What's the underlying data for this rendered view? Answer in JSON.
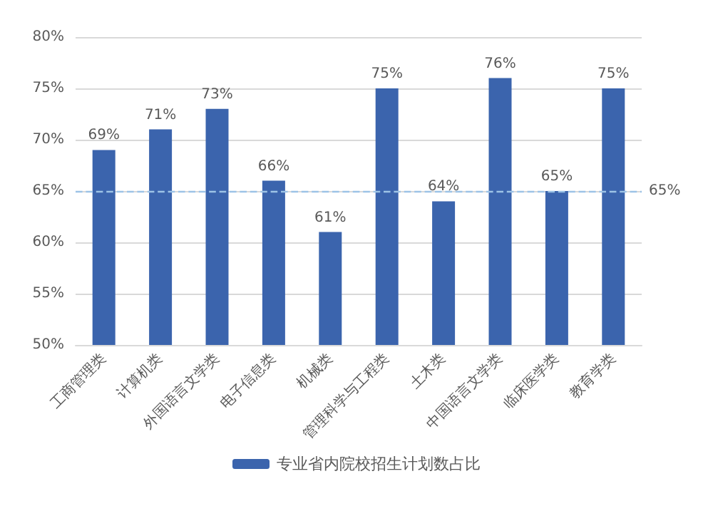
{
  "chart_data": {
    "type": "bar",
    "categories": [
      "工商管理类",
      "计算机类",
      "外国语言文学类",
      "电子信息类",
      "机械类",
      "管理科学与工程类",
      "土木类",
      "中国语言文学类",
      "临床医学类",
      "教育学类"
    ],
    "series": [
      {
        "name": "专业省内院校招生计划数占比",
        "color": "#3b64ad",
        "values": [
          69,
          71,
          73,
          66,
          61,
          75,
          64,
          76,
          65,
          75
        ]
      }
    ],
    "value_labels": [
      "69%",
      "71%",
      "73%",
      "66%",
      "61%",
      "75%",
      "64%",
      "76%",
      "65%",
      "75%"
    ],
    "ylim": [
      50,
      80
    ],
    "yticks": [
      {
        "value": 50,
        "label": "50%"
      },
      {
        "value": 55,
        "label": "55%"
      },
      {
        "value": 60,
        "label": "60%"
      },
      {
        "value": 65,
        "label": "65%"
      },
      {
        "value": 70,
        "label": "70%"
      },
      {
        "value": 75,
        "label": "75%"
      },
      {
        "value": 80,
        "label": "80%"
      }
    ],
    "ref_lines": [
      {
        "axis": "y",
        "value": 65,
        "label": "65%",
        "color": "#9dc3e6",
        "line_style": "dashed"
      }
    ],
    "grid": "y",
    "legend": "bottom"
  }
}
